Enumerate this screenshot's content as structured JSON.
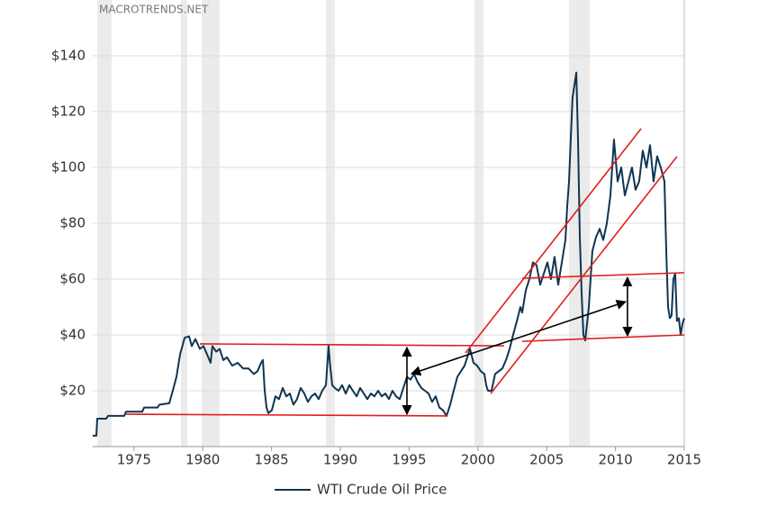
{
  "chart_data": {
    "type": "line",
    "watermark": "MACROTRENDS.NET",
    "xlim": [
      1972,
      2015
    ],
    "ylim": [
      0,
      160
    ],
    "xticks": [
      1975,
      1980,
      1985,
      1990,
      1995,
      2000,
      2005,
      2010,
      2015
    ],
    "yticks": [
      {
        "value": 20,
        "label": "$20"
      },
      {
        "value": 40,
        "label": "$40"
      },
      {
        "value": 60,
        "label": "$60"
      },
      {
        "value": 80,
        "label": "$80"
      },
      {
        "value": 100,
        "label": "$100"
      },
      {
        "value": 120,
        "label": "$120"
      },
      {
        "value": 140,
        "label": "$140"
      }
    ],
    "grid": true,
    "legend": "bottom",
    "shaded_ranges": [
      [
        1972.33,
        1973.37
      ],
      [
        1978.41,
        1978.87
      ],
      [
        1979.92,
        1981.23
      ],
      [
        1988.95,
        1989.6
      ],
      [
        1999.75,
        2000.4
      ],
      [
        2006.62,
        2008.13
      ]
    ],
    "shade_color": "#ebebeb",
    "trend_lines": {
      "color": "#e01e1e",
      "lines": [
        [
          [
            1974.42,
            11.6
          ],
          [
            1997.79,
            11.0
          ]
        ],
        [
          [
            1979.79,
            36.8
          ],
          [
            2001.9,
            36.1
          ]
        ],
        [
          [
            1999.09,
            33.5
          ],
          [
            2011.86,
            113.9
          ]
        ],
        [
          [
            2000.93,
            19.0
          ],
          [
            2014.47,
            103.9
          ]
        ],
        [
          [
            2003.22,
            60.3
          ],
          [
            2015,
            62.3
          ]
        ],
        [
          [
            2003.22,
            37.7
          ],
          [
            2015,
            40.0
          ]
        ]
      ]
    },
    "arrows": {
      "color": "#000000",
      "lines": [
        [
          [
            1994.84,
            35.5
          ],
          [
            1994.84,
            11.6
          ]
        ],
        [
          [
            1995.17,
            26.1
          ],
          [
            2010.74,
            51.9
          ]
        ],
        [
          [
            2010.87,
            60.6
          ],
          [
            2010.87,
            39.7
          ]
        ]
      ]
    },
    "x": [
      1972.0,
      1972.26,
      1972.33,
      1972.98,
      1973.11,
      1974.29,
      1974.42,
      1975.6,
      1975.73,
      1976.71,
      1976.84,
      1977.56,
      1977.82,
      1978.09,
      1978.35,
      1978.68,
      1979.0,
      1979.2,
      1979.46,
      1979.79,
      1980.05,
      1980.31,
      1980.57,
      1980.7,
      1980.97,
      1981.23,
      1981.49,
      1981.75,
      1982.14,
      1982.54,
      1982.93,
      1983.32,
      1983.71,
      1983.98,
      1984.24,
      1984.37,
      1984.5,
      1984.63,
      1984.76,
      1985.02,
      1985.28,
      1985.54,
      1985.81,
      1986.07,
      1986.33,
      1986.59,
      1986.85,
      1987.11,
      1987.38,
      1987.64,
      1987.9,
      1988.16,
      1988.42,
      1988.68,
      1988.95,
      1989.14,
      1989.28,
      1989.41,
      1989.6,
      1989.87,
      1990.13,
      1990.39,
      1990.65,
      1990.91,
      1991.18,
      1991.44,
      1991.7,
      1991.96,
      1992.22,
      1992.48,
      1992.75,
      1993.01,
      1993.27,
      1993.53,
      1993.79,
      1994.05,
      1994.32,
      1994.58,
      1994.84,
      1995.1,
      1995.36,
      1995.63,
      1995.89,
      1996.15,
      1996.41,
      1996.67,
      1996.93,
      1997.2,
      1997.46,
      1997.72,
      1997.98,
      1998.24,
      1998.51,
      1998.77,
      1999.03,
      1999.29,
      1999.42,
      1999.68,
      1999.94,
      2000.21,
      2000.47,
      2000.6,
      2000.73,
      2000.99,
      2001.25,
      2001.52,
      2001.78,
      2002.04,
      2002.3,
      2002.56,
      2002.83,
      2003.09,
      2003.22,
      2003.48,
      2003.74,
      2004.0,
      2004.26,
      2004.53,
      2004.79,
      2005.05,
      2005.31,
      2005.57,
      2005.84,
      2006.1,
      2006.36,
      2006.49,
      2006.62,
      2006.75,
      2006.88,
      2007.15,
      2007.28,
      2007.41,
      2007.54,
      2007.67,
      2007.8,
      2008.06,
      2008.32,
      2008.58,
      2008.85,
      2009.11,
      2009.37,
      2009.63,
      2009.89,
      2010.16,
      2010.42,
      2010.68,
      2010.94,
      2011.2,
      2011.46,
      2011.72,
      2011.98,
      2012.25,
      2012.51,
      2012.77,
      2013.03,
      2013.29,
      2013.56,
      2013.69,
      2013.82,
      2013.95,
      2014.08,
      2014.21,
      2014.34,
      2014.47,
      2014.61,
      2014.74,
      2014.87,
      2015.0
    ],
    "series": [
      {
        "name": "WTI Crude Oil Price",
        "color": "#0e3552",
        "values": [
          3.9,
          3.9,
          10,
          10,
          11,
          11,
          12.5,
          12.5,
          14,
          14,
          15,
          15.5,
          20,
          25,
          33,
          39,
          39.5,
          36,
          38.5,
          35,
          36,
          33,
          30,
          36,
          34,
          35,
          31,
          32,
          29,
          30,
          28,
          28,
          26,
          27,
          30,
          31,
          20,
          14,
          12,
          13,
          18,
          17,
          21,
          18,
          19,
          15,
          17,
          21,
          19,
          16,
          18,
          19,
          17,
          20,
          22,
          36,
          28,
          22,
          21,
          20,
          22,
          19,
          22,
          20,
          18,
          21,
          19,
          17,
          19,
          18,
          20,
          18,
          19,
          17,
          20,
          18,
          17,
          21,
          25,
          24,
          26,
          23,
          21,
          20,
          19,
          16,
          18,
          14,
          13,
          11,
          15,
          20,
          25,
          27,
          29,
          33,
          35,
          30,
          29,
          27,
          26,
          22,
          20,
          20,
          26,
          27,
          28,
          31,
          35,
          40,
          45,
          50,
          48,
          56,
          60,
          66,
          65,
          58,
          62,
          66,
          60,
          68,
          58,
          66,
          74,
          86,
          95,
          110,
          125,
          134,
          110,
          75,
          55,
          40,
          38,
          50,
          70,
          75,
          78,
          74,
          80,
          90,
          110,
          95,
          100,
          90,
          95,
          100,
          92,
          95,
          106,
          100,
          108,
          95,
          104,
          100,
          95,
          70,
          50,
          46,
          47,
          60,
          62,
          45,
          46,
          40,
          44,
          46
        ]
      }
    ]
  }
}
